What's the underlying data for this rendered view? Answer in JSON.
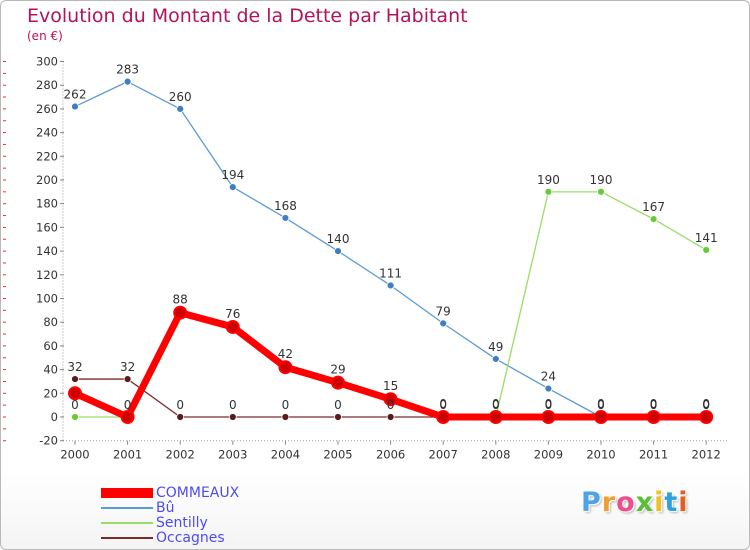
{
  "title": "Evolution du Montant de la Dette par Habitant",
  "subtitle": "(en €)",
  "logo_text": "Proxiti",
  "chart_data": {
    "type": "line",
    "title": "Evolution du Montant de la Dette par Habitant",
    "subtitle": "(en €)",
    "x": [
      "2000",
      "2001",
      "2002",
      "2003",
      "2004",
      "2005",
      "2006",
      "2007",
      "2008",
      "2009",
      "2010",
      "2011",
      "2012"
    ],
    "ylim": [
      -20,
      300
    ],
    "yticks": [
      -20,
      0,
      20,
      40,
      60,
      80,
      100,
      120,
      140,
      160,
      180,
      200,
      220,
      240,
      260,
      280,
      300
    ],
    "grid": false,
    "legend_position": "bottom-left",
    "series": [
      {
        "name": "COMMEAUX",
        "color": "#ff0000",
        "values": [
          20,
          0,
          88,
          76,
          42,
          29,
          15,
          0,
          0,
          0,
          0,
          0,
          0
        ],
        "labels": [
          "",
          "",
          "88",
          "76",
          "42",
          "29",
          "15",
          "0",
          "0",
          "0",
          "0",
          "0",
          "0"
        ]
      },
      {
        "name": "Bû",
        "color": "#5b9bd5",
        "values": [
          262,
          283,
          260,
          194,
          168,
          140,
          111,
          79,
          49,
          24,
          0,
          0,
          0
        ],
        "labels": [
          "262",
          "283",
          "260",
          "194",
          "168",
          "140",
          "111",
          "79",
          "49",
          "24",
          "0",
          "0",
          "0"
        ]
      },
      {
        "name": "Sentilly",
        "color": "#99dd66",
        "values": [
          0,
          0,
          null,
          null,
          null,
          null,
          null,
          null,
          0,
          190,
          190,
          167,
          141
        ],
        "labels": [
          "0",
          "0",
          "",
          "",
          "",
          "",
          "",
          "",
          "",
          "190",
          "190",
          "167",
          "141"
        ]
      },
      {
        "name": "Occagnes",
        "color": "#7a2a2a",
        "values": [
          32,
          32,
          0,
          0,
          0,
          0,
          0,
          0,
          0,
          0,
          0,
          0,
          0
        ],
        "labels": [
          "32",
          "32",
          "0",
          "0",
          "0",
          "0",
          "0",
          "0",
          "0",
          "0",
          "0",
          "0",
          "0"
        ]
      }
    ]
  }
}
